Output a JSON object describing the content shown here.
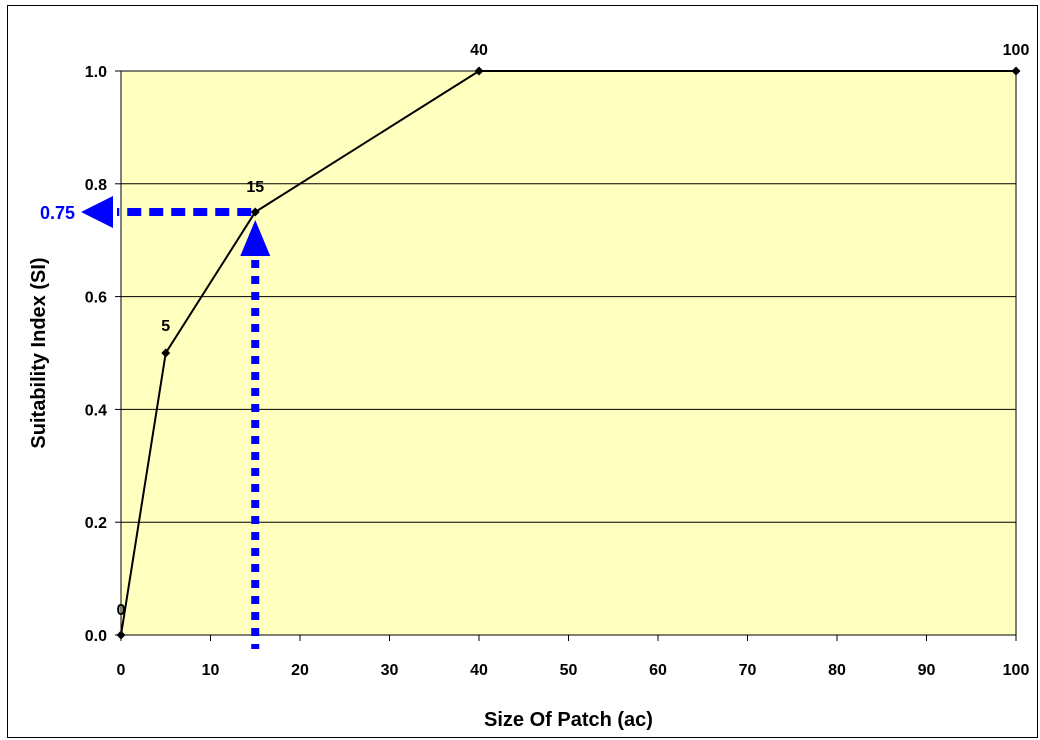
{
  "chart_data": {
    "type": "line",
    "xlabel": "Size Of Patch (ac)",
    "ylabel": "Suitability Index (SI)",
    "xlim": [
      0,
      100
    ],
    "ylim": [
      0.0,
      1.0
    ],
    "x_ticks": [
      0,
      10,
      20,
      30,
      40,
      50,
      60,
      70,
      80,
      90,
      100
    ],
    "y_ticks": [
      0.0,
      0.2,
      0.4,
      0.6,
      0.8,
      1.0
    ],
    "x_tick_labels": [
      "0",
      "10",
      "20",
      "30",
      "40",
      "50",
      "60",
      "70",
      "80",
      "90",
      "100"
    ],
    "y_tick_labels": [
      "0.0",
      "0.2",
      "0.4",
      "0.6",
      "0.8",
      "1.0"
    ],
    "grid": "horizontal",
    "plot_background": "#ffffc0",
    "series": [
      {
        "color": "#000000",
        "marker": "diamond",
        "points": [
          {
            "x": 0,
            "y": 0.0,
            "label": "0"
          },
          {
            "x": 5,
            "y": 0.5,
            "label": "5"
          },
          {
            "x": 15,
            "y": 0.75,
            "label": "15"
          },
          {
            "x": 40,
            "y": 1.0,
            "label": "40"
          },
          {
            "x": 100,
            "y": 1.0,
            "label": "100"
          }
        ]
      }
    ],
    "annotation": {
      "x": 15,
      "y": 0.75,
      "label": "0.75",
      "color": "#0000ff",
      "style": "dotted-arrows"
    }
  }
}
